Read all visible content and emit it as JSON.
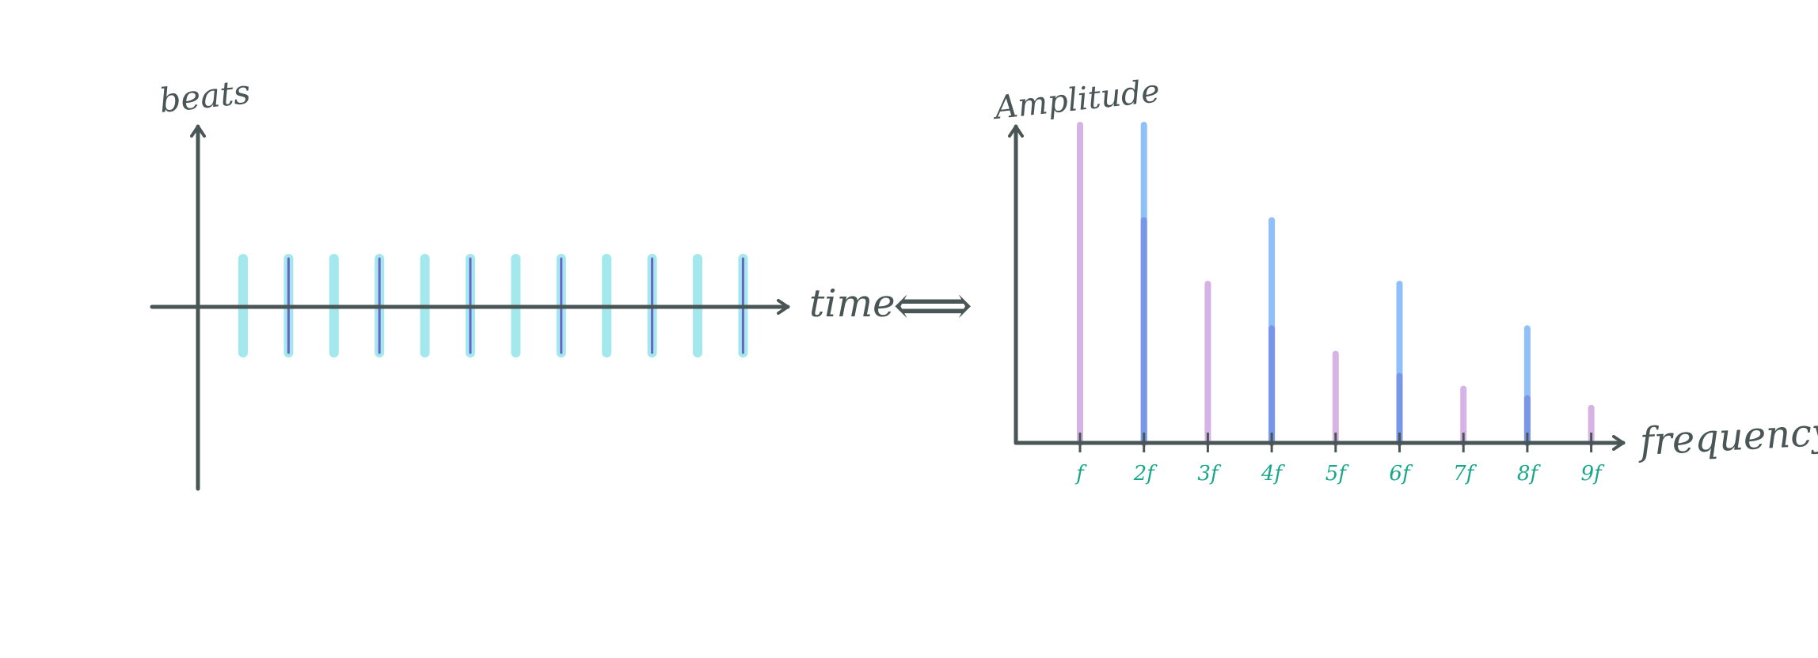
{
  "time_plot": {
    "y_label": "beats",
    "x_label": "time",
    "pulse_count": 12,
    "strong_every": 2,
    "colors": {
      "pulse": "#a3e8ec",
      "strong": "#6b62c9",
      "axis": "#4a5556"
    }
  },
  "equivalence_symbol": "⟺",
  "chart_data": {
    "type": "bar",
    "ylabel": "Amplitude",
    "xlabel": "frequency",
    "categories": [
      "f",
      "2f",
      "3f",
      "4f",
      "5f",
      "6f",
      "7f",
      "8f",
      "9f"
    ],
    "series": [
      {
        "values": [
          1.0,
          0.0,
          0.5,
          0.0,
          0.28,
          0.0,
          0.17,
          0.0,
          0.11
        ]
      },
      {
        "values": [
          0.0,
          1.0,
          0.0,
          0.7,
          0.0,
          0.5,
          0.0,
          0.36,
          0.0
        ]
      },
      {
        "values": [
          0.0,
          0.7,
          0.0,
          0.36,
          0.0,
          0.21,
          0.0,
          0.14,
          0.0
        ]
      }
    ],
    "ylim": [
      0,
      1
    ],
    "colors": [
      "#d6b3e4",
      "#8fc0fb",
      "#7896ea"
    ],
    "tick_label_color": "#1aa68a"
  }
}
